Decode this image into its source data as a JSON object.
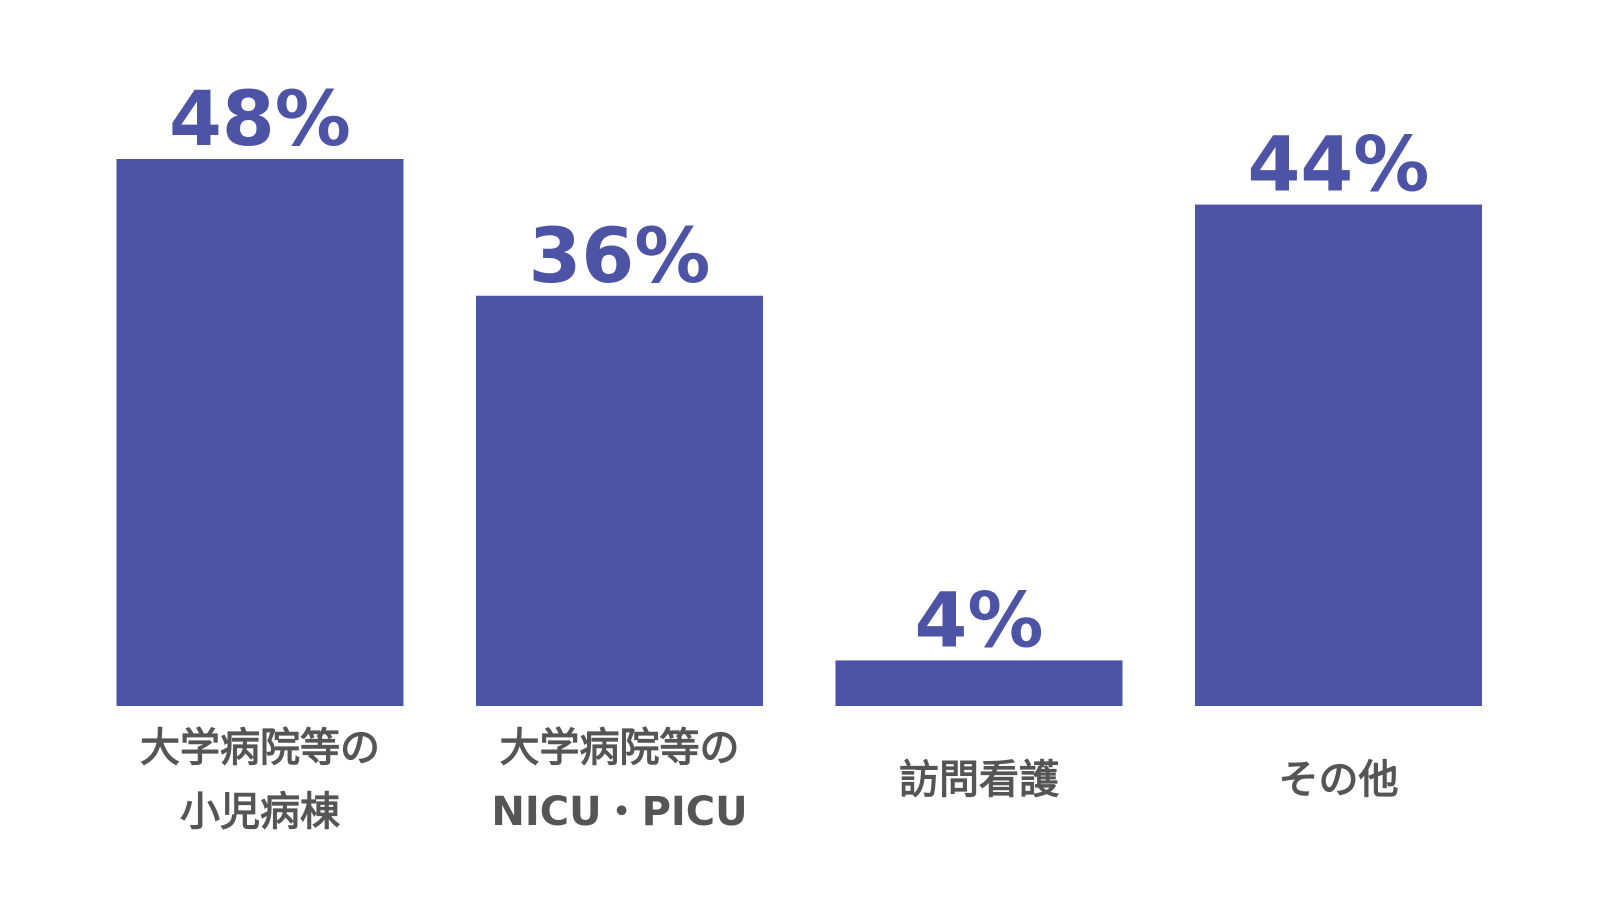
{
  "chart_data": {
    "type": "bar",
    "categories": [
      [
        "大学病院等の",
        "小児病棟"
      ],
      [
        "大学病院等の",
        "NICU・PICU"
      ],
      [
        "訪問看護"
      ],
      [
        "その他"
      ]
    ],
    "values": [
      48,
      36,
      4,
      44
    ],
    "value_labels": [
      "48%",
      "36%",
      "4%",
      "44%"
    ],
    "color": "#4d54a6"
  }
}
